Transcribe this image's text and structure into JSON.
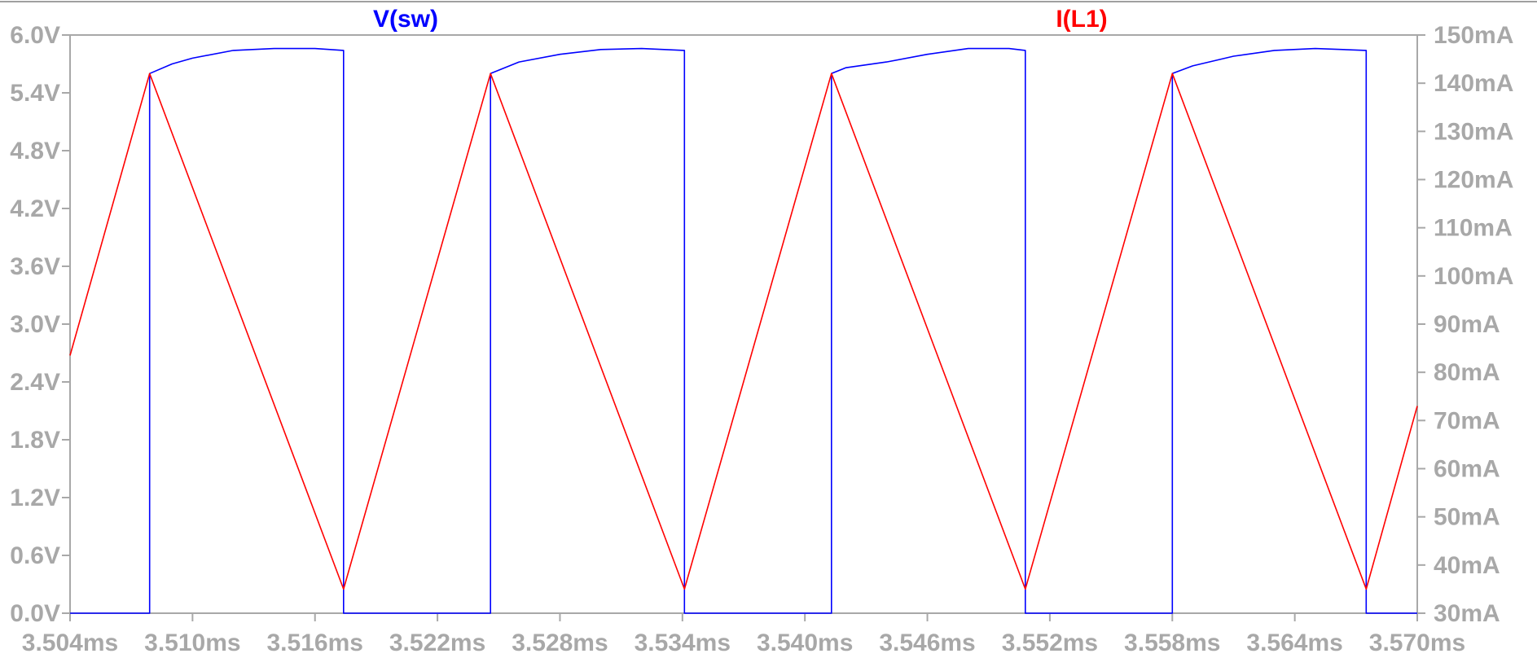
{
  "chart_data": {
    "type": "line",
    "x_unit": "ms",
    "xlim": [
      3.504,
      3.57
    ],
    "x_ticks": [
      "3.504ms",
      "3.510ms",
      "3.516ms",
      "3.522ms",
      "3.528ms",
      "3.534ms",
      "3.540ms",
      "3.546ms",
      "3.552ms",
      "3.558ms",
      "3.564ms",
      "3.570ms"
    ],
    "x_tick_values": [
      3.504,
      3.51,
      3.516,
      3.522,
      3.528,
      3.534,
      3.54,
      3.546,
      3.552,
      3.558,
      3.564,
      3.57
    ],
    "y_left": {
      "ylim": [
        0,
        6.0
      ],
      "ticks": [
        "6.0V",
        "5.4V",
        "4.8V",
        "4.2V",
        "3.6V",
        "3.0V",
        "2.4V",
        "1.8V",
        "1.2V",
        "0.6V",
        "0.0V"
      ],
      "tick_values": [
        6.0,
        5.4,
        4.8,
        4.2,
        3.6,
        3.0,
        2.4,
        1.8,
        1.2,
        0.6,
        0.0
      ]
    },
    "y_right": {
      "ylim": [
        30,
        150
      ],
      "ticks": [
        "150mA",
        "140mA",
        "130mA",
        "120mA",
        "110mA",
        "100mA",
        "90mA",
        "80mA",
        "70mA",
        "60mA",
        "50mA",
        "40mA",
        "30mA"
      ],
      "tick_values": [
        150,
        140,
        130,
        120,
        110,
        100,
        90,
        80,
        70,
        60,
        50,
        40,
        30
      ]
    },
    "grid": false,
    "series": [
      {
        "name": "V(sw)",
        "axis": "left",
        "color": "#0000ff",
        "points": [
          [
            3.504,
            0.0
          ],
          [
            3.5079,
            0.0
          ],
          [
            3.5079,
            5.6
          ],
          [
            3.509,
            5.7
          ],
          [
            3.51,
            5.76
          ],
          [
            3.512,
            5.84
          ],
          [
            3.514,
            5.86
          ],
          [
            3.516,
            5.86
          ],
          [
            3.5174,
            5.84
          ],
          [
            3.5174,
            0.0
          ],
          [
            3.5246,
            0.0
          ],
          [
            3.5246,
            5.6
          ],
          [
            3.526,
            5.72
          ],
          [
            3.528,
            5.8
          ],
          [
            3.53,
            5.85
          ],
          [
            3.532,
            5.86
          ],
          [
            3.5341,
            5.84
          ],
          [
            3.5341,
            0.0
          ],
          [
            3.5413,
            0.0
          ],
          [
            3.5413,
            5.6
          ],
          [
            3.542,
            5.66
          ],
          [
            3.544,
            5.72
          ],
          [
            3.546,
            5.8
          ],
          [
            3.548,
            5.86
          ],
          [
            3.55,
            5.86
          ],
          [
            3.5508,
            5.84
          ],
          [
            3.5508,
            0.0
          ],
          [
            3.558,
            0.0
          ],
          [
            3.558,
            5.6
          ],
          [
            3.559,
            5.68
          ],
          [
            3.561,
            5.78
          ],
          [
            3.563,
            5.84
          ],
          [
            3.565,
            5.86
          ],
          [
            3.5675,
            5.84
          ],
          [
            3.5675,
            0.0
          ],
          [
            3.57,
            0.0
          ]
        ]
      },
      {
        "name": "I(L1)",
        "axis": "right",
        "color": "#ff0000",
        "points": [
          [
            3.504,
            83.5
          ],
          [
            3.5079,
            142
          ],
          [
            3.5174,
            35
          ],
          [
            3.5246,
            142
          ],
          [
            3.5341,
            35
          ],
          [
            3.5413,
            142
          ],
          [
            3.5508,
            35
          ],
          [
            3.558,
            142
          ],
          [
            3.5675,
            35
          ],
          [
            3.57,
            73
          ]
        ]
      }
    ]
  }
}
